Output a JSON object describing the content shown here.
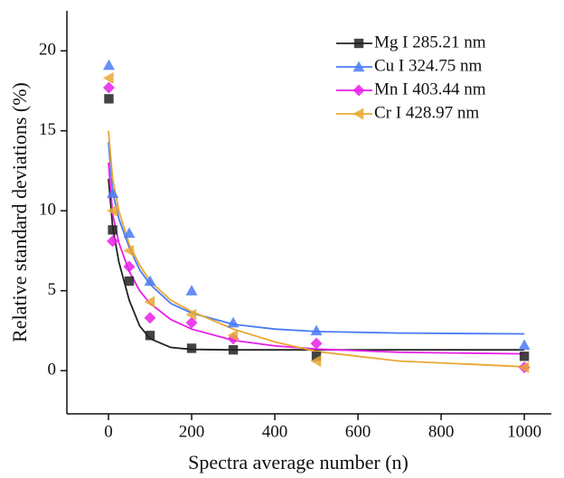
{
  "chart_data": {
    "type": "scatter",
    "x_label": "Spectra average number (n)",
    "y_label": "Relative standard deviations (%)",
    "x": [
      1,
      10,
      50,
      100,
      200,
      300,
      500,
      1000
    ],
    "fit_x": [
      0,
      10,
      25,
      50,
      75,
      100,
      150,
      200,
      300,
      400,
      500,
      700,
      1000
    ],
    "xlim": [
      -100,
      1065
    ],
    "ylim": [
      -2.7,
      22.5
    ],
    "xticks": [
      0,
      200,
      400,
      600,
      800,
      1000
    ],
    "yticks": [
      0,
      5,
      10,
      15,
      20
    ],
    "series": [
      {
        "name": "Mg I 285.21 nm",
        "color": "#222222",
        "marker": "square",
        "values": [
          17.0,
          8.8,
          5.6,
          2.2,
          1.4,
          1.3,
          0.9,
          0.9
        ],
        "fit_values": [
          12,
          9.0,
          6.8,
          4.4,
          2.8,
          2.0,
          1.45,
          1.33,
          1.3,
          1.3,
          1.3,
          1.3,
          1.3
        ]
      },
      {
        "name": "Cu I 324.75 nm",
        "color": "#4a7bf5",
        "marker": "triangle-up",
        "values": [
          19.1,
          11.1,
          8.6,
          5.6,
          5.0,
          3.0,
          2.5,
          1.6
        ],
        "fit_values": [
          14.3,
          11.2,
          9.5,
          7.7,
          6.3,
          5.4,
          4.2,
          3.6,
          2.9,
          2.6,
          2.45,
          2.35,
          2.3
        ]
      },
      {
        "name": "Mn I 403.44 nm",
        "color": "#e81ee8",
        "marker": "diamond",
        "values": [
          17.7,
          8.1,
          6.5,
          3.3,
          3.0,
          2.0,
          1.7,
          0.2
        ],
        "fit_values": [
          13,
          9.8,
          8.0,
          6.2,
          5.0,
          4.2,
          3.2,
          2.6,
          1.9,
          1.55,
          1.35,
          1.15,
          1.05
        ]
      },
      {
        "name": "Cr I 428.97 nm",
        "color": "#e8a832",
        "marker": "triangle-left",
        "values": [
          18.3,
          10.0,
          7.5,
          4.3,
          3.5,
          2.2,
          0.6,
          0.2
        ],
        "fit_values": [
          15,
          12,
          10,
          7.9,
          6.6,
          5.6,
          4.4,
          3.7,
          2.6,
          1.8,
          1.2,
          0.6,
          0.25
        ]
      }
    ]
  }
}
